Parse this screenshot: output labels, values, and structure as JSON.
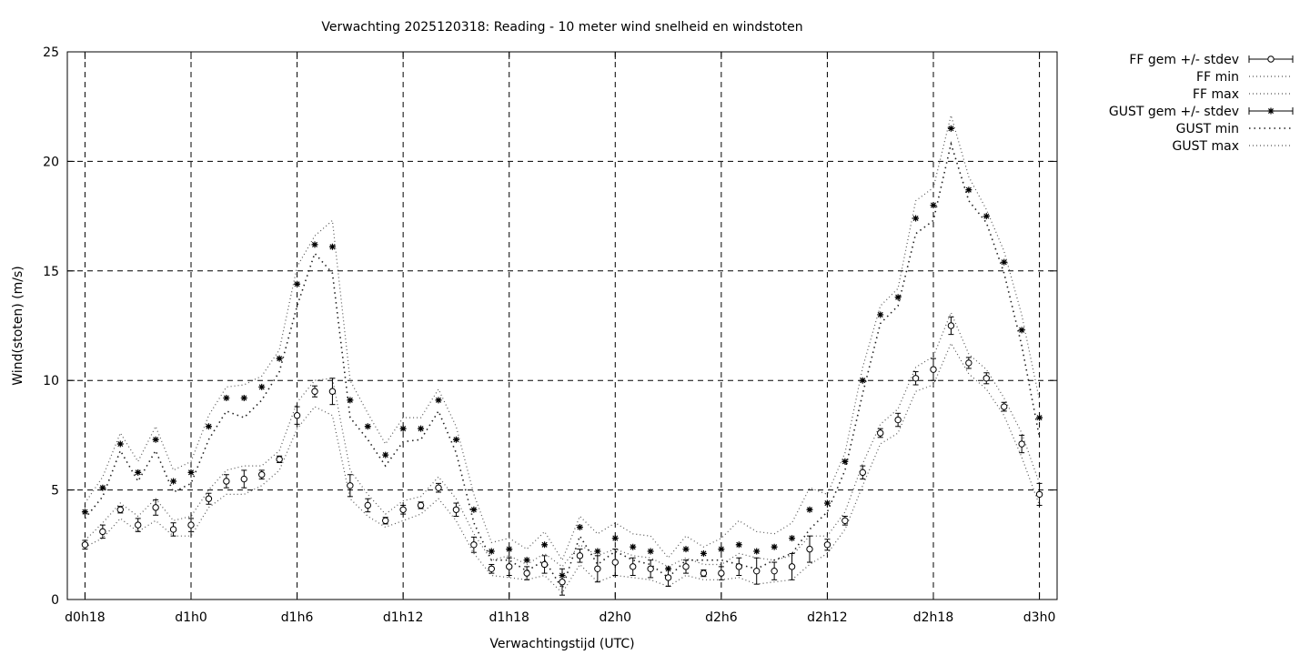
{
  "chart_data": {
    "type": "line",
    "title": "Verwachting 2025120318: Reading - 10 meter wind snelheid en windstoten",
    "xlabel": "Verwachtingstijd (UTC)",
    "ylabel": "Wind(stoten) (m/s)",
    "xlim": [
      -1,
      55
    ],
    "ylim": [
      0,
      25
    ],
    "grid": true,
    "legend_position": "outside-top-right",
    "x_ticks": [
      {
        "x": 0,
        "label": "d0h18"
      },
      {
        "x": 6,
        "label": "d1h0"
      },
      {
        "x": 12,
        "label": "d1h6"
      },
      {
        "x": 18,
        "label": "d1h12"
      },
      {
        "x": 24,
        "label": "d1h18"
      },
      {
        "x": 30,
        "label": "d2h0"
      },
      {
        "x": 36,
        "label": "d2h6"
      },
      {
        "x": 42,
        "label": "d2h12"
      },
      {
        "x": 48,
        "label": "d2h18"
      },
      {
        "x": 54,
        "label": "d3h0"
      }
    ],
    "y_ticks": [
      {
        "y": 0,
        "label": "0"
      },
      {
        "y": 5,
        "label": "5"
      },
      {
        "y": 10,
        "label": "10"
      },
      {
        "y": 15,
        "label": "15"
      },
      {
        "y": 20,
        "label": "20"
      },
      {
        "y": 25,
        "label": "25"
      }
    ],
    "x": [
      0,
      1,
      2,
      3,
      4,
      5,
      6,
      7,
      8,
      9,
      10,
      11,
      12,
      13,
      14,
      15,
      16,
      17,
      18,
      19,
      20,
      21,
      22,
      23,
      24,
      25,
      26,
      27,
      28,
      29,
      30,
      31,
      32,
      33,
      34,
      35,
      36,
      37,
      38,
      39,
      40,
      41,
      42,
      43,
      44,
      45,
      46,
      47,
      48,
      49,
      50,
      51,
      52,
      53,
      54
    ],
    "series": [
      {
        "name": "FF gem +/- stdev",
        "marker": "circle",
        "values": [
          2.5,
          3.1,
          4.1,
          3.4,
          4.2,
          3.2,
          3.4,
          4.6,
          5.4,
          5.5,
          5.7,
          6.4,
          8.4,
          9.5,
          9.5,
          5.2,
          4.3,
          3.6,
          4.1,
          4.3,
          5.1,
          4.1,
          2.5,
          1.4,
          1.5,
          1.2,
          1.6,
          0.8,
          2.0,
          1.4,
          1.7,
          1.5,
          1.4,
          1.0,
          1.5,
          1.2,
          1.2,
          1.5,
          1.3,
          1.3,
          1.5,
          2.3,
          2.5,
          3.6,
          5.8,
          7.6,
          8.2,
          10.1,
          10.5,
          12.5,
          10.8,
          10.1,
          8.8,
          7.1,
          4.8
        ],
        "stdev": [
          0.2,
          0.3,
          0.15,
          0.3,
          0.35,
          0.3,
          0.3,
          0.25,
          0.3,
          0.4,
          0.2,
          0.15,
          0.4,
          0.25,
          0.6,
          0.5,
          0.3,
          0.15,
          0.2,
          0.15,
          0.2,
          0.3,
          0.35,
          0.2,
          0.4,
          0.3,
          0.4,
          0.6,
          0.3,
          0.6,
          0.6,
          0.4,
          0.4,
          0.4,
          0.3,
          0.15,
          0.3,
          0.4,
          0.6,
          0.4,
          0.6,
          0.6,
          0.25,
          0.2,
          0.3,
          0.2,
          0.3,
          0.3,
          0.5,
          0.4,
          0.25,
          0.25,
          0.2,
          0.4,
          0.5
        ]
      },
      {
        "name": "FF min",
        "values": [
          2.4,
          2.8,
          3.7,
          3.1,
          3.6,
          2.9,
          2.9,
          4.2,
          4.8,
          4.8,
          5.2,
          5.9,
          7.8,
          8.8,
          8.4,
          4.6,
          3.8,
          3.3,
          3.6,
          3.9,
          4.6,
          3.6,
          2.1,
          1.1,
          1.0,
          0.9,
          1.1,
          0.3,
          1.6,
          0.8,
          1.1,
          1.0,
          0.9,
          0.6,
          1.1,
          0.9,
          0.9,
          1.0,
          0.7,
          0.8,
          0.9,
          1.6,
          2.1,
          3.2,
          5.2,
          7.1,
          7.6,
          9.5,
          9.8,
          11.7,
          10.3,
          9.6,
          8.4,
          6.5,
          4.3
        ]
      },
      {
        "name": "FF max",
        "values": [
          2.7,
          3.5,
          4.4,
          3.8,
          4.6,
          3.6,
          3.8,
          5.0,
          5.9,
          6.1,
          6.1,
          6.8,
          9.0,
          10.0,
          10.1,
          5.9,
          4.8,
          3.9,
          4.5,
          4.7,
          5.6,
          4.6,
          3.0,
          1.8,
          2.0,
          1.6,
          2.1,
          1.5,
          2.5,
          2.0,
          2.3,
          2.0,
          1.9,
          1.5,
          1.9,
          1.6,
          1.6,
          2.1,
          1.9,
          1.8,
          2.0,
          2.9,
          2.9,
          4.0,
          6.2,
          8.0,
          8.7,
          10.6,
          11.1,
          13.1,
          11.2,
          10.5,
          9.2,
          7.6,
          5.3
        ]
      },
      {
        "name": "GUST gem +/- stdev",
        "marker": "star",
        "values": [
          4.0,
          5.1,
          7.1,
          5.8,
          7.3,
          5.4,
          5.8,
          7.9,
          9.2,
          9.2,
          9.7,
          11.0,
          14.4,
          16.2,
          16.1,
          9.1,
          7.9,
          6.6,
          7.8,
          7.8,
          9.1,
          7.3,
          4.1,
          2.2,
          2.3,
          1.8,
          2.5,
          1.1,
          3.3,
          2.2,
          2.8,
          2.4,
          2.2,
          1.4,
          2.3,
          2.1,
          2.3,
          2.5,
          2.2,
          2.4,
          2.8,
          4.1,
          4.4,
          6.3,
          10.0,
          13.0,
          13.8,
          17.4,
          18.0,
          21.5,
          18.7,
          17.5,
          15.4,
          12.3,
          8.3
        ]
      },
      {
        "name": "GUST min",
        "values": [
          3.7,
          4.7,
          6.8,
          5.4,
          6.8,
          4.9,
          5.3,
          7.3,
          8.6,
          8.3,
          9.1,
          10.4,
          13.4,
          15.8,
          14.9,
          8.3,
          7.3,
          6.1,
          7.2,
          7.3,
          8.6,
          6.7,
          3.5,
          1.8,
          1.8,
          1.3,
          1.8,
          0.5,
          2.9,
          1.6,
          2.2,
          1.8,
          1.6,
          1.0,
          1.8,
          1.8,
          1.8,
          1.6,
          1.4,
          1.8,
          2.1,
          3.2,
          4.0,
          5.9,
          9.4,
          12.6,
          13.4,
          16.7,
          17.3,
          20.8,
          18.2,
          17.2,
          14.9,
          11.6,
          7.4
        ]
      },
      {
        "name": "GUST max",
        "values": [
          4.4,
          5.6,
          7.6,
          6.3,
          7.9,
          5.9,
          6.3,
          8.4,
          9.7,
          9.8,
          10.2,
          11.4,
          15.2,
          16.6,
          17.3,
          10.0,
          8.5,
          7.1,
          8.3,
          8.3,
          9.6,
          7.9,
          4.8,
          2.6,
          2.8,
          2.3,
          3.1,
          1.8,
          3.8,
          3.0,
          3.5,
          3.0,
          2.9,
          1.9,
          2.9,
          2.4,
          2.8,
          3.6,
          3.1,
          3.0,
          3.5,
          5.1,
          4.8,
          6.7,
          10.6,
          13.4,
          14.2,
          18.2,
          18.8,
          22.1,
          19.3,
          17.8,
          15.9,
          13.0,
          9.1
        ]
      }
    ]
  }
}
